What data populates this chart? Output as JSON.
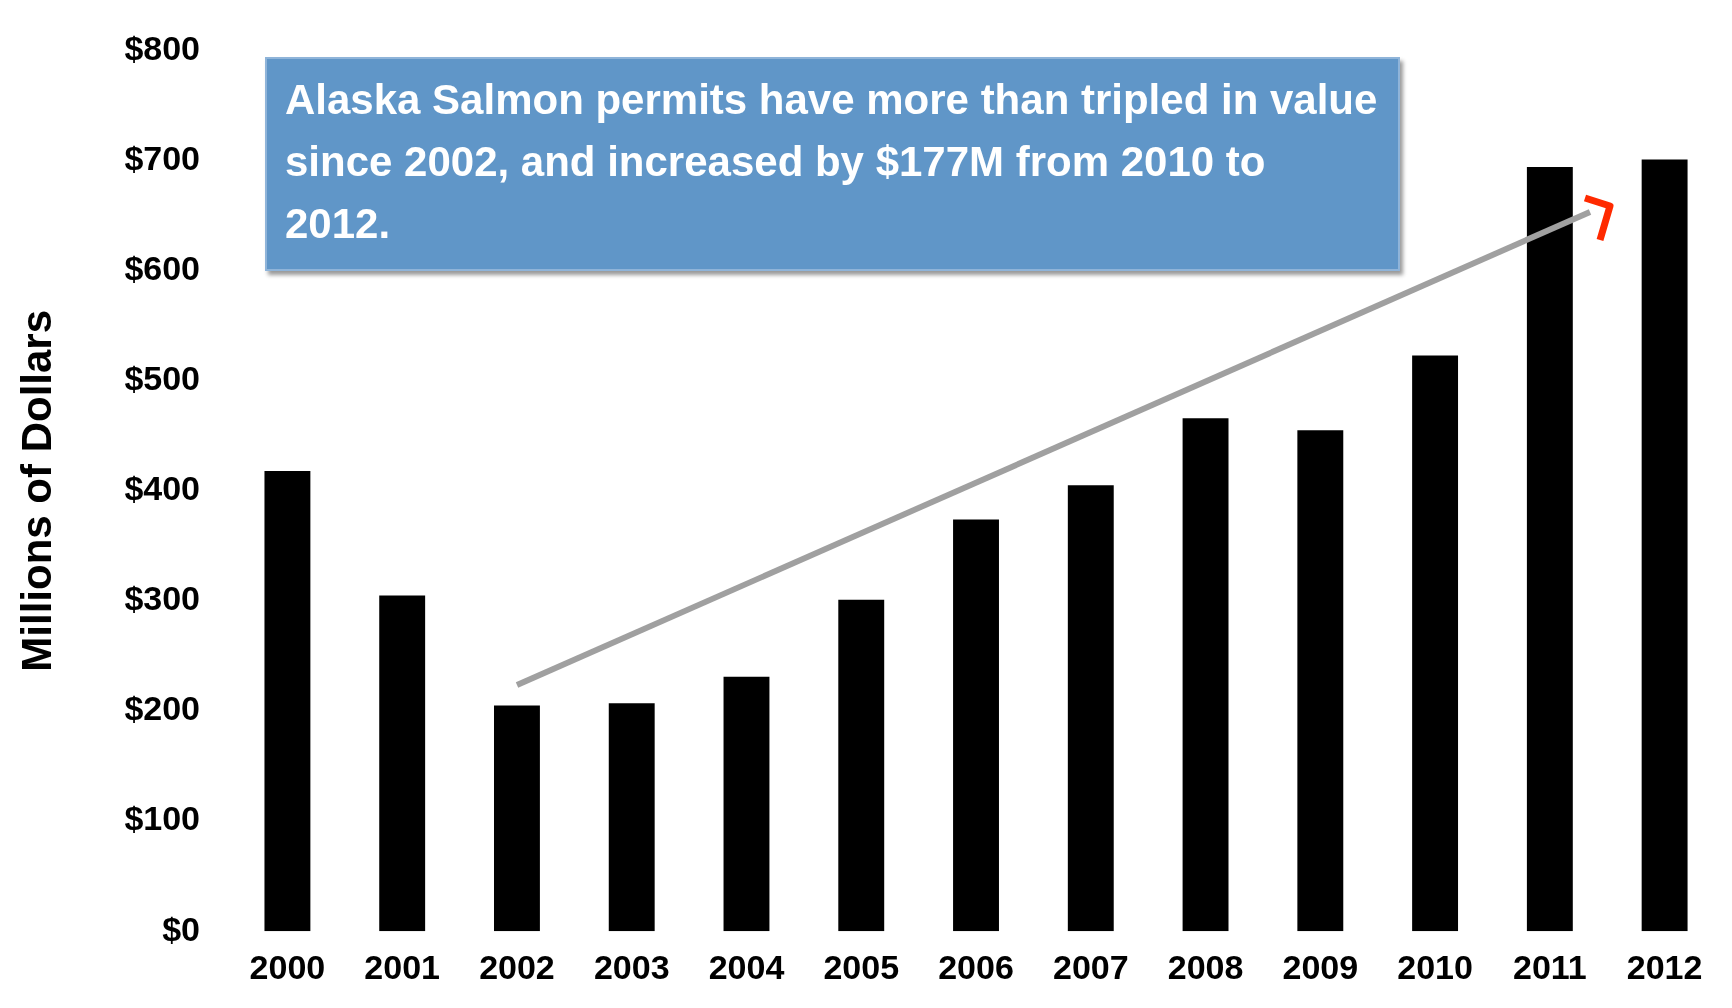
{
  "chart_data": {
    "type": "bar",
    "ylabel": "Millions of Dollars",
    "categories": [
      "2000",
      "2001",
      "2002",
      "2003",
      "2004",
      "2005",
      "2006",
      "2007",
      "2008",
      "2009",
      "2010",
      "2011",
      "2012"
    ],
    "values": [
      418,
      305,
      205,
      207,
      231,
      301,
      374,
      405,
      466,
      455,
      523,
      694,
      701
    ],
    "color": "#000000",
    "ylim": [
      0,
      800
    ],
    "yticks": [
      {
        "value": 0,
        "label": "$0"
      },
      {
        "value": 100,
        "label": "$100"
      },
      {
        "value": 200,
        "label": "$200"
      },
      {
        "value": 300,
        "label": "$300"
      },
      {
        "value": 400,
        "label": "$400"
      },
      {
        "value": 500,
        "label": "$500"
      },
      {
        "value": 600,
        "label": "$600"
      },
      {
        "value": 700,
        "label": "$700"
      },
      {
        "value": 800,
        "label": "$800"
      }
    ],
    "annotations": [
      "Alaska Salmon permits have more than tripled in value since 2002, and increased by $177M from 2010 to 2012."
    ]
  }
}
